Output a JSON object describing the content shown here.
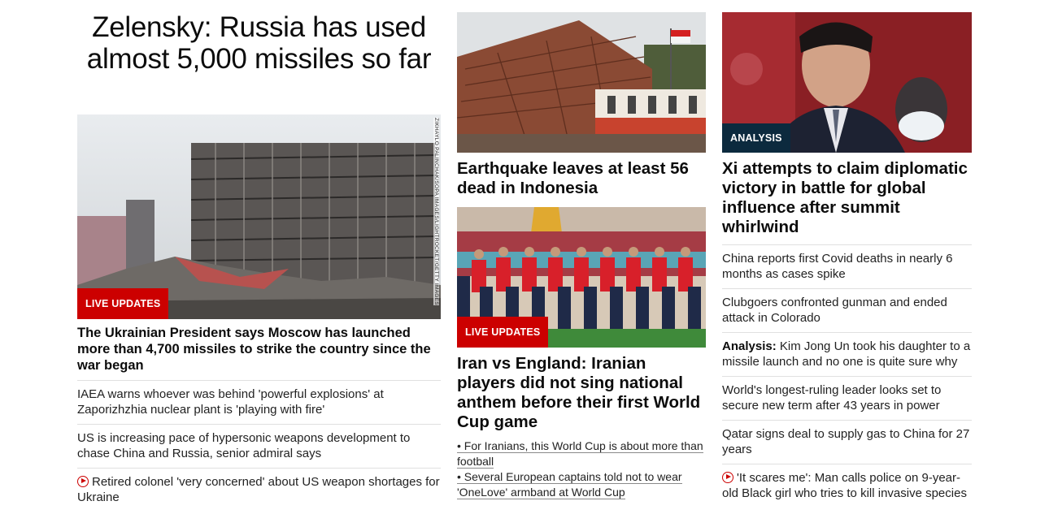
{
  "col1": {
    "headline": "Zelensky: Russia has used almost 5,000 missiles so far",
    "image": {
      "badge": "LIVE UPDATES",
      "credit": "ZIKHAYLO PALINCHAK/SOPA IMAGES/LIGHTROCKET/GETTY IMAGES"
    },
    "lead_sub": "The Ukrainian President says Moscow has launched more than 4,700 missiles to strike the country since the war began",
    "items": [
      {
        "text": "IAEA warns whoever was behind 'powerful explosions' at Zaporizhzhia nuclear plant is 'playing with fire'"
      },
      {
        "text": "US is increasing pace of hypersonic weapons development to chase China and Russia, senior admiral says"
      },
      {
        "text": "Retired colonel 'very concerned' about US weapon shortages for Ukraine",
        "icon": "play-icon"
      }
    ]
  },
  "col2": {
    "story1": {
      "title": "Earthquake leaves at least 56 dead in Indonesia"
    },
    "story2": {
      "badge": "LIVE UPDATES",
      "title": "Iran vs England: Iranian players did not sing national anthem before their first World Cup game",
      "bullets": [
        "• For Iranians, this World Cup is about more than football",
        "• Several European captains told not to wear 'OneLove' armband at World Cup"
      ]
    }
  },
  "col3": {
    "story": {
      "badge": "ANALYSIS",
      "title": "Xi attempts to claim diplomatic victory in battle for global influence after summit whirlwind"
    },
    "items": [
      {
        "text": "China reports first Covid deaths in nearly 6 months as cases spike"
      },
      {
        "text": "Clubgoers confronted gunman and ended attack in Colorado"
      },
      {
        "label": "Analysis:",
        "text": " Kim Jong Un took his daughter to a missile launch and no one is quite sure why"
      },
      {
        "text": "World's longest-ruling leader looks set to secure new term after 43 years in power"
      },
      {
        "text": "Qatar signs deal to supply gas to China for 27 years"
      },
      {
        "text": "'It scares me': Man calls police on 9-year-old Black girl who tries to kill invasive species",
        "icon": "play-icon"
      }
    ]
  },
  "colors": {
    "badge_red": "#cc0000",
    "badge_dark": "#0c2a3e",
    "divider": "#e0e0e0"
  }
}
